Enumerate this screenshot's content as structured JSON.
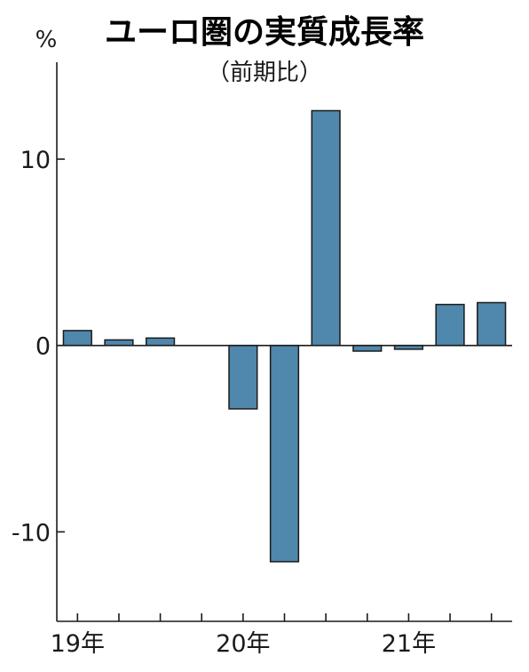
{
  "chart_data": {
    "type": "bar",
    "title": "ユーロ圏の実質成長率",
    "subtitle": "（前期比）",
    "ylabel": "%",
    "ylim": [
      -14.8,
      15.2
    ],
    "yticks": [
      10,
      0,
      -10
    ],
    "ytick_labels": [
      "10",
      "0",
      "-10"
    ],
    "x_group_labels": [
      "19年",
      "20年",
      "21年"
    ],
    "quarters": [
      "2019Q1",
      "2019Q2",
      "2019Q3",
      "2019Q4",
      "2020Q1",
      "2020Q2",
      "2020Q3",
      "2020Q4",
      "2021Q1",
      "2021Q2",
      "2021Q3"
    ],
    "values": [
      0.8,
      0.3,
      0.4,
      null,
      -3.4,
      -11.6,
      12.6,
      -0.3,
      -0.2,
      2.2,
      2.3
    ],
    "bar_color": "#4f87ad",
    "grid": false
  }
}
